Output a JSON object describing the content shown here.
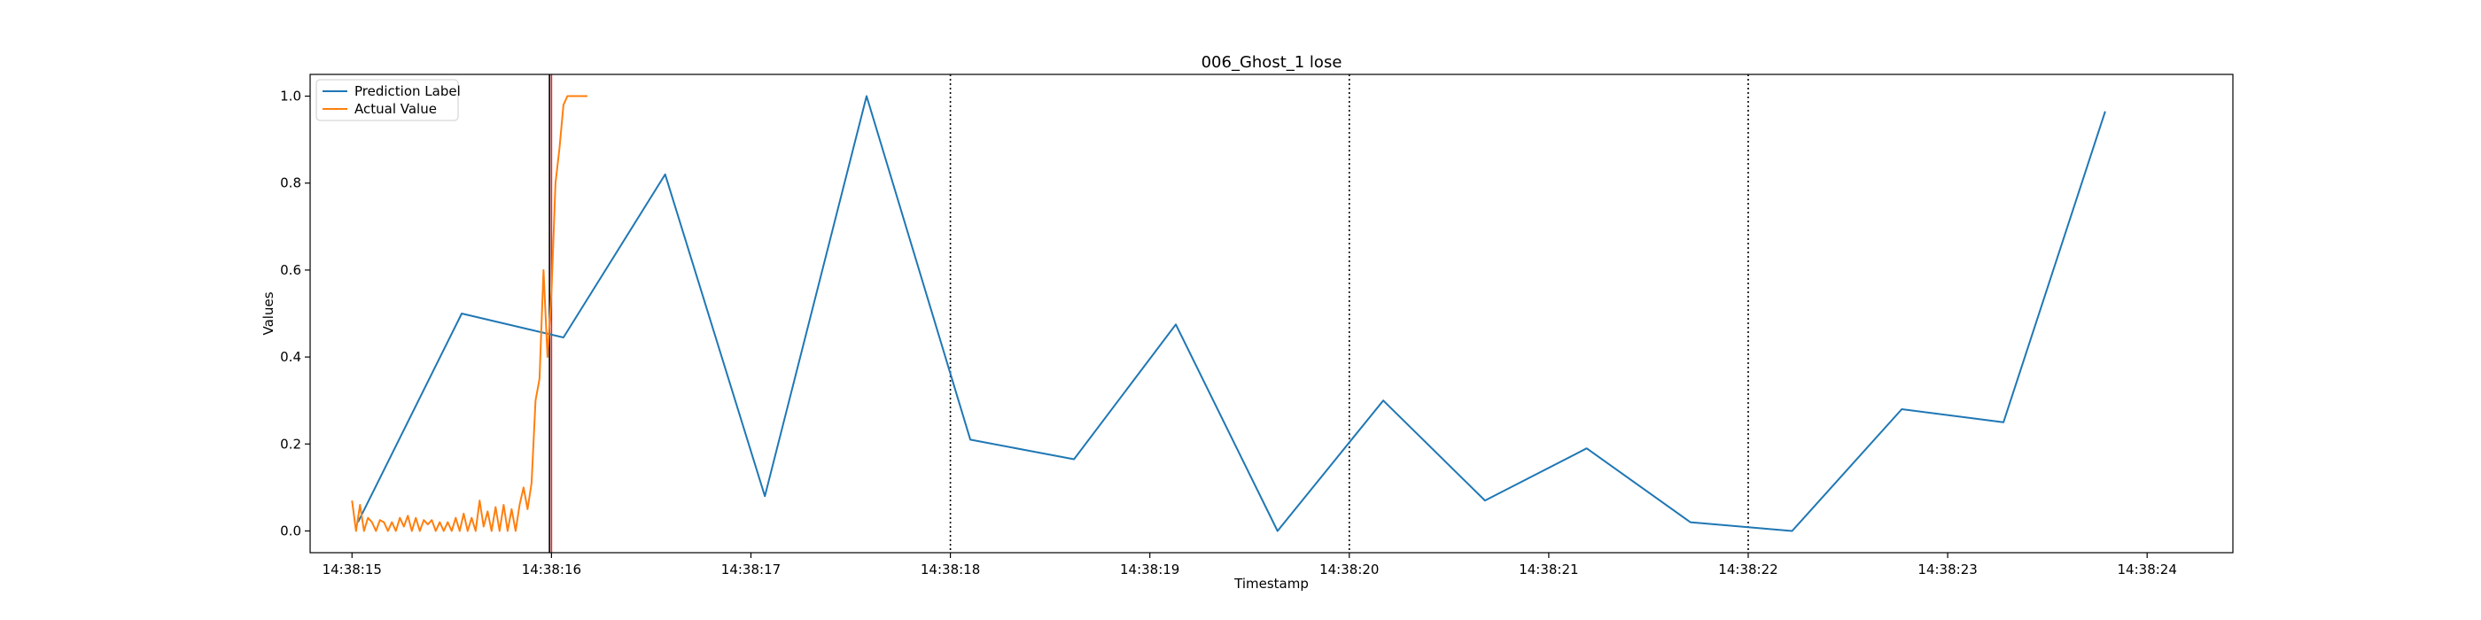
{
  "chart_data": {
    "type": "line",
    "title": "006_Ghost_1 lose",
    "xlabel": "Timestamp",
    "ylabel": "Values",
    "xlim": [
      14.79,
      24.43
    ],
    "ylim": [
      -0.05,
      1.05
    ],
    "x_ticks": [
      15,
      16,
      17,
      18,
      19,
      20,
      21,
      22,
      23,
      24
    ],
    "x_tick_labels": [
      "14:38:15",
      "14:38:16",
      "14:38:17",
      "14:38:18",
      "14:38:19",
      "14:38:20",
      "14:38:21",
      "14:38:22",
      "14:38:23",
      "14:38:24"
    ],
    "y_ticks": [
      0.0,
      0.2,
      0.4,
      0.6,
      0.8,
      1.0
    ],
    "y_tick_labels": [
      "0.0",
      "0.2",
      "0.4",
      "0.6",
      "0.8",
      "1.0"
    ],
    "grid": false,
    "legend_position": "top-left",
    "series": [
      {
        "name": "Prediction Label",
        "color": "#1f77b4",
        "x": [
          15.03,
          15.55,
          16.06,
          16.57,
          17.07,
          17.58,
          18.1,
          18.62,
          19.13,
          19.64,
          20.17,
          20.68,
          21.19,
          21.71,
          22.22,
          22.77,
          23.28,
          23.79
        ],
        "y": [
          0.02,
          0.5,
          0.445,
          0.82,
          0.08,
          1.0,
          0.21,
          0.165,
          0.475,
          0.0,
          0.3,
          0.07,
          0.19,
          0.02,
          0.0,
          0.28,
          0.25,
          0.965
        ]
      },
      {
        "name": "Actual Value",
        "color": "#ff7f0e",
        "x": [
          15.0,
          15.02,
          15.04,
          15.06,
          15.08,
          15.1,
          15.12,
          15.14,
          15.16,
          15.18,
          15.2,
          15.22,
          15.24,
          15.26,
          15.28,
          15.3,
          15.32,
          15.34,
          15.36,
          15.38,
          15.4,
          15.42,
          15.44,
          15.46,
          15.48,
          15.5,
          15.52,
          15.54,
          15.56,
          15.58,
          15.6,
          15.62,
          15.64,
          15.66,
          15.68,
          15.7,
          15.72,
          15.74,
          15.76,
          15.78,
          15.8,
          15.82,
          15.84,
          15.86,
          15.88,
          15.9,
          15.92,
          15.94,
          15.96,
          15.98,
          16.0,
          16.02,
          16.04,
          16.06,
          16.08,
          16.1,
          16.12,
          16.14,
          16.16,
          16.18
        ],
        "y": [
          0.07,
          0.0,
          0.06,
          0.0,
          0.03,
          0.02,
          0.0,
          0.025,
          0.02,
          0.0,
          0.02,
          0.0,
          0.03,
          0.01,
          0.035,
          0.0,
          0.03,
          0.0,
          0.025,
          0.015,
          0.025,
          0.0,
          0.02,
          0.0,
          0.02,
          0.0,
          0.03,
          0.0,
          0.04,
          0.0,
          0.03,
          0.0,
          0.07,
          0.01,
          0.045,
          0.0,
          0.055,
          0.0,
          0.06,
          0.0,
          0.05,
          0.0,
          0.06,
          0.1,
          0.05,
          0.11,
          0.3,
          0.35,
          0.6,
          0.4,
          0.55,
          0.8,
          0.88,
          0.98,
          1.0,
          1.0,
          1.0,
          1.0,
          1.0,
          1.0
        ]
      }
    ],
    "vertical_lines": [
      {
        "x": 15.99,
        "color": "#000000",
        "style": "solid"
      },
      {
        "x": 16.0,
        "color": "#d62728",
        "style": "solid"
      },
      {
        "x": 18.0,
        "color": "#000000",
        "style": "dotted"
      },
      {
        "x": 20.0,
        "color": "#000000",
        "style": "dotted"
      },
      {
        "x": 22.0,
        "color": "#000000",
        "style": "dotted"
      }
    ]
  }
}
